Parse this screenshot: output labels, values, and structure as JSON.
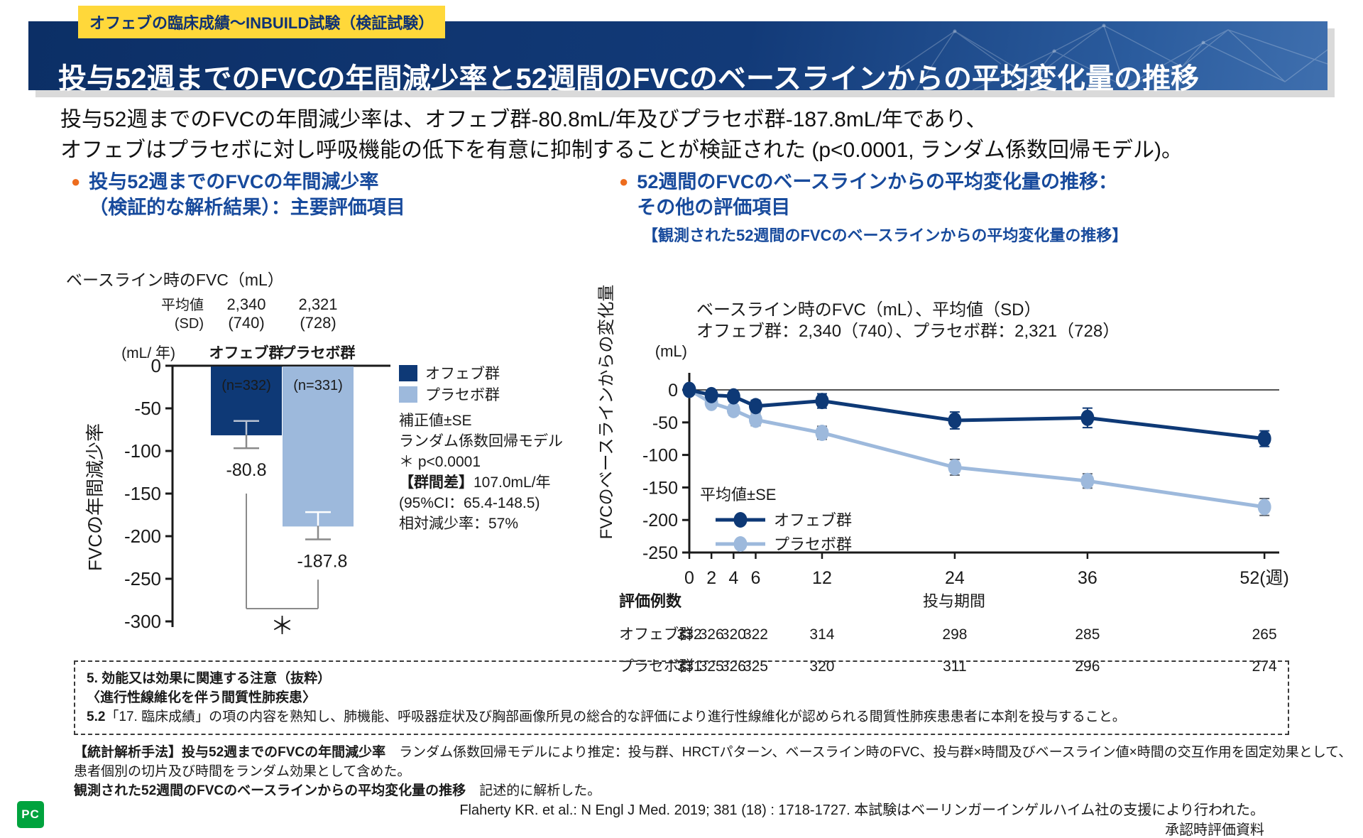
{
  "page": {
    "badge": "オフェブの臨床成績～INBUILD試験（検証試験）",
    "title": "投与52週までのFVCの年間減少率と52週間のFVCのベースラインからの平均変化量の推移",
    "lead_line1": "投与52週までのFVCの年間減少率は、オフェブ群-80.8mL/年及びプラセボ群-187.8mL/年であり、",
    "lead_line2": "オフェブはプラセボに対し呼吸機能の低下を有意に抑制することが検証された (p<0.0001, ランダム係数回帰モデル)。"
  },
  "colors": {
    "ofev_navy": "#0e3976",
    "placebo_blue": "#9db9dc",
    "heading_blue": "#174a9c",
    "bullet_orange": "#ed6c1e",
    "badge_yellow": "#ffd83a",
    "logo_green": "#00a33e",
    "error_gray": "#8a8a8a"
  },
  "left_section": {
    "heading_line1": "投与52週までのFVCの年間減少率",
    "heading_line2": "（検証的な解析結果）：主要評価項目",
    "legend": [
      {
        "label": "オフェブ群",
        "color": "#0e3976"
      },
      {
        "label": "プラセボ群",
        "color": "#9db9dc"
      }
    ],
    "annotation": {
      "line1": "補正値±SE",
      "line2": "ランダム係数回帰モデル",
      "line3": "＊ p<0.0001",
      "line4_bold": "【群間差】",
      "line4_rest": "107.0mL/年",
      "line5": "(95%CI：65.4-148.5)",
      "line6": "相対減少率：57%"
    }
  },
  "right_section": {
    "heading_line1": "52週間のFVCのベースラインからの平均変化量の推移：",
    "heading_line2": "その他の評価項目",
    "subheading": "【観測された52週間のFVCのベースラインからの平均変化量の推移】"
  },
  "note_box": {
    "line1": "5. 効能又は効果に関連する注意（抜粋）",
    "line2": "〈進行性線維化を伴う間質性肺疾患〉",
    "line3_bold": "5.2",
    "line3_rest": "「17. 臨床成績」の項の内容を熟知し、肺機能、呼吸器症状及び胸部画像所見の総合的な評価により進行性線維化が認められる間質性肺疾患患者に本剤を投与すること。"
  },
  "methods": {
    "p1_bold": "【統計解析手法】投与52週までのFVCの年間減少率",
    "p1_rest": "　ランダム係数回帰モデルにより推定：投与群、HRCTパターン、ベースライン時のFVC、投与群×時間及びベースライン値×時間の交互作用を固定効果として、",
    "p1_line2": "患者個別の切片及び時間をランダム効果として含めた。",
    "p2_bold": "観測された52週間のFVCのベースラインからの平均変化量の推移",
    "p2_rest": "　記述的に解析した。"
  },
  "footer": {
    "citation": "Flaherty KR. et al.: N Engl J Med. 2019; 381 (18) : 1718-1727. 本試験はベーリンガーインゲルハイム社の支援により行われた。",
    "approval": "承認時評価資料",
    "logo": "PC"
  },
  "chart_data": [
    {
      "type": "bar",
      "title": "ベースライン時のFVC（mL）",
      "mean_row_label1": "平均値",
      "mean_row_label2": "(SD)",
      "baseline_means": [
        "2,340",
        "2,321"
      ],
      "baseline_sds": [
        "(740)",
        "(728)"
      ],
      "unit_label": "(mL/ 年)",
      "ylabel": "FVCの年間減少率",
      "categories": [
        "オフェブ群",
        "プラセボ群"
      ],
      "values": [
        -80.8,
        -187.8
      ],
      "value_labels": [
        "-80.8",
        "-187.8"
      ],
      "n_labels": [
        "(n=332)",
        "(n=331)"
      ],
      "se": [
        16,
        16
      ],
      "ylim": [
        -300,
        0
      ],
      "yticks": [
        0,
        -50,
        -100,
        -150,
        -200,
        -250,
        -300
      ],
      "bar_colors": [
        "#0e3976",
        "#9db9dc"
      ],
      "significance_label": "＊",
      "grid": false
    },
    {
      "type": "line",
      "title_line1": "ベースライン時のFVC（mL）、平均値（SD）",
      "title_line2": "オフェブ群：2,340（740）、プラセボ群：2,321（728）",
      "unit_label": "(mL)",
      "ylabel": "FVCのベースラインからの変化量",
      "xlabel": "投与期間",
      "x_weeks": [
        0,
        2,
        4,
        6,
        12,
        24,
        36,
        52
      ],
      "xtick_labels": [
        "0",
        "2",
        "4",
        "6",
        "12",
        "24",
        "36",
        "52(週)"
      ],
      "ylim": [
        -250,
        0
      ],
      "yticks": [
        0,
        -50,
        -100,
        -150,
        -200,
        -250
      ],
      "legend_title": "平均値±SE",
      "legend_position": "lower-left-inside",
      "grid": false,
      "series": [
        {
          "name": "オフェブ群",
          "color": "#0e3976",
          "error_color": "#0e3976",
          "values": [
            0,
            -8,
            -10,
            -25,
            -17,
            -47,
            -43,
            -75
          ],
          "se": [
            3,
            7,
            7,
            9,
            11,
            13,
            15,
            12
          ]
        },
        {
          "name": "プラセボ群",
          "color": "#9db9dc",
          "error_color": "#5d6570",
          "values": [
            0,
            -20,
            -31,
            -46,
            -66,
            -119,
            -140,
            -180
          ],
          "se": [
            3,
            7,
            8,
            9,
            10,
            12,
            11,
            13
          ]
        }
      ],
      "counts": {
        "header": "評価例数",
        "rows": [
          {
            "label": "オフェブ群",
            "values": [
              "332",
              "326",
              "320",
              "322",
              "314",
              "298",
              "285",
              "265"
            ]
          },
          {
            "label": "プラセボ群",
            "values": [
              "331",
              "325",
              "326",
              "325",
              "320",
              "311",
              "296",
              "274"
            ]
          }
        ]
      }
    }
  ]
}
